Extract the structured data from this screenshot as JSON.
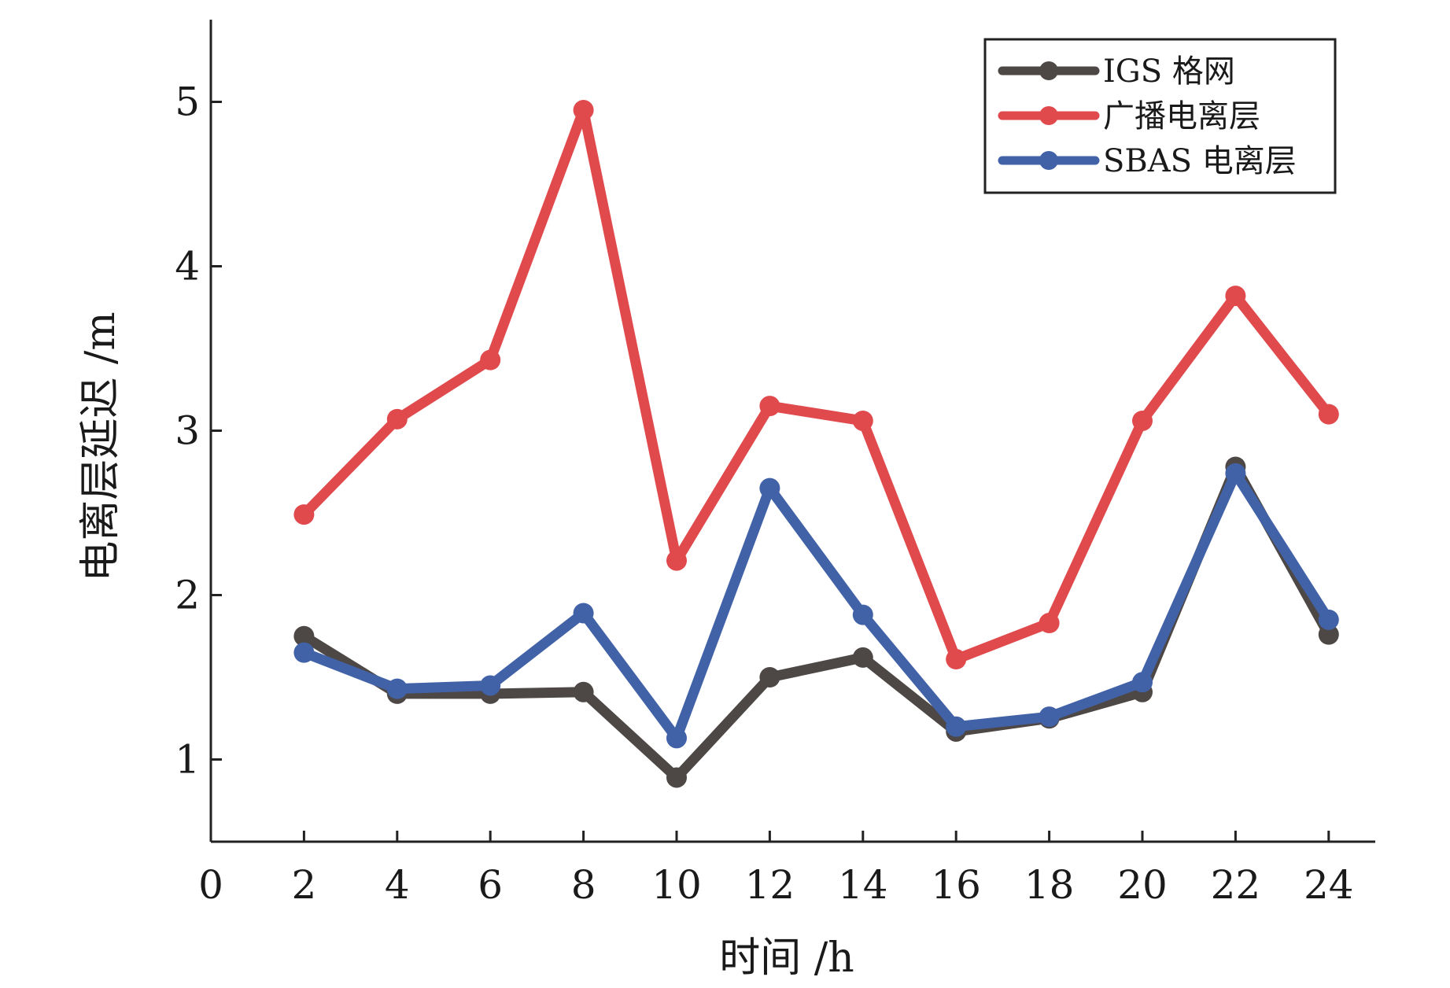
{
  "chart_data": {
    "type": "line",
    "title": "",
    "xlabel": "时间 /h",
    "ylabel": "电离层延迟 /m",
    "xlim": [
      0,
      25
    ],
    "ylim": [
      0.5,
      5.5
    ],
    "xticks": [
      0,
      2,
      4,
      6,
      8,
      10,
      12,
      14,
      16,
      18,
      20,
      22,
      24
    ],
    "yticks": [
      1,
      2,
      3,
      4,
      5
    ],
    "grid": false,
    "legend_position": "top-right",
    "x": [
      2,
      4,
      6,
      8,
      10,
      12,
      14,
      16,
      18,
      20,
      22,
      24
    ],
    "series": [
      {
        "name": "IGS 格网",
        "color": "#4d4846",
        "values": [
          1.75,
          1.4,
          1.4,
          1.41,
          0.89,
          1.5,
          1.62,
          1.17,
          1.25,
          1.41,
          2.78,
          1.76
        ]
      },
      {
        "name": "广播电离层",
        "color": "#e04a4d",
        "values": [
          2.49,
          3.07,
          3.43,
          4.95,
          2.21,
          3.15,
          3.06,
          1.61,
          1.83,
          3.06,
          3.82,
          3.1
        ]
      },
      {
        "name": "SBAS 电离层",
        "color": "#4262a8",
        "values": [
          1.65,
          1.43,
          1.45,
          1.89,
          1.13,
          2.65,
          1.88,
          1.2,
          1.26,
          1.47,
          2.74,
          1.85
        ]
      }
    ]
  }
}
